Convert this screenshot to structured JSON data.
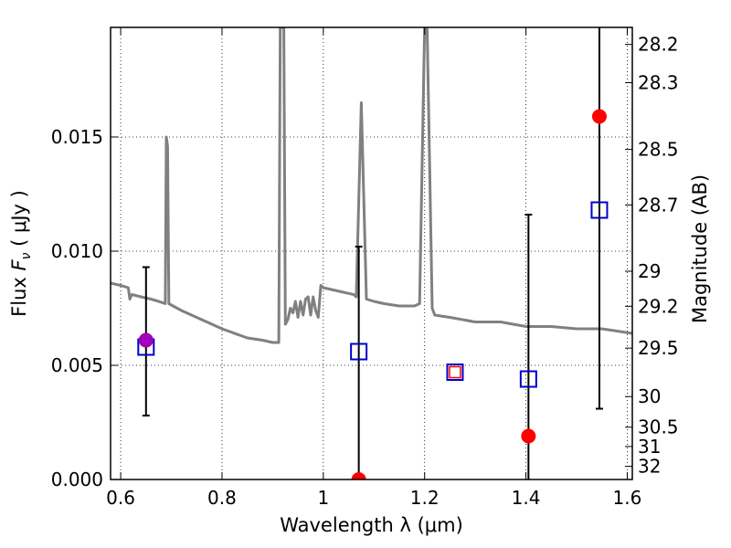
{
  "chart_data": {
    "type": "scatter",
    "xlabel": "Wavelength  λ (μm)",
    "ylabel": "Flux  F_ν  ( μJy )",
    "ylabel_parts": {
      "pre": "Flux  ",
      "sym": "F",
      "sub": "ν",
      "post": "  ( μJy )"
    },
    "y2label": "Magnitude (AB)",
    "xlim": [
      0.58,
      1.61
    ],
    "ylim": [
      0.0,
      0.0198
    ],
    "grid": true,
    "x_ticks": [
      {
        "v": 0.6,
        "label": "0.6"
      },
      {
        "v": 0.8,
        "label": "0.8"
      },
      {
        "v": 1.0,
        "label": "1"
      },
      {
        "v": 1.2,
        "label": "1.2"
      },
      {
        "v": 1.4,
        "label": "1.4"
      },
      {
        "v": 1.6,
        "label": "1.6"
      }
    ],
    "y_ticks": [
      {
        "v": 0.0,
        "label": "0.000"
      },
      {
        "v": 0.005,
        "label": "0.005"
      },
      {
        "v": 0.01,
        "label": "0.010"
      },
      {
        "v": 0.015,
        "label": "0.015"
      }
    ],
    "mag_ticks": [
      {
        "mag": 28.2,
        "label": "28.2"
      },
      {
        "mag": 28.3,
        "label": "28.3"
      },
      {
        "mag": 28.5,
        "label": "28.5"
      },
      {
        "mag": 28.7,
        "label": "28.7"
      },
      {
        "mag": 29,
        "label": "29"
      },
      {
        "mag": 29.2,
        "label": "29.2"
      },
      {
        "mag": 29.5,
        "label": "29.5"
      },
      {
        "mag": 30,
        "label": "30"
      },
      {
        "mag": 30.5,
        "label": "30.5"
      },
      {
        "mag": 31,
        "label": "31"
      },
      {
        "mag": 32,
        "label": "32"
      }
    ],
    "model_spectrum": {
      "color": "#808080",
      "points": [
        [
          0.58,
          0.0086
        ],
        [
          0.6,
          0.0085
        ],
        [
          0.615,
          0.0084
        ],
        [
          0.618,
          0.0079
        ],
        [
          0.622,
          0.0081
        ],
        [
          0.64,
          0.008
        ],
        [
          0.66,
          0.0079
        ],
        [
          0.675,
          0.0078
        ],
        [
          0.688,
          0.0077
        ],
        [
          0.69,
          0.015
        ],
        [
          0.6925,
          0.0146
        ],
        [
          0.695,
          0.0077
        ],
        [
          0.72,
          0.0074
        ],
        [
          0.75,
          0.0071
        ],
        [
          0.8,
          0.0066
        ],
        [
          0.85,
          0.0062
        ],
        [
          0.88,
          0.0061
        ],
        [
          0.9,
          0.006
        ],
        [
          0.912,
          0.006
        ],
        [
          0.915,
          0.0198
        ],
        [
          0.922,
          0.0198
        ],
        [
          0.925,
          0.0068
        ],
        [
          0.93,
          0.007
        ],
        [
          0.935,
          0.0075
        ],
        [
          0.94,
          0.0073
        ],
        [
          0.945,
          0.0078
        ],
        [
          0.95,
          0.0071
        ],
        [
          0.955,
          0.0078
        ],
        [
          0.96,
          0.0072
        ],
        [
          0.965,
          0.0079
        ],
        [
          0.97,
          0.008
        ],
        [
          0.975,
          0.0072
        ],
        [
          0.98,
          0.008
        ],
        [
          0.985,
          0.0074
        ],
        [
          0.99,
          0.0071
        ],
        [
          0.995,
          0.0085
        ],
        [
          1.0,
          0.0084
        ],
        [
          1.02,
          0.0083
        ],
        [
          1.04,
          0.0082
        ],
        [
          1.06,
          0.0081
        ],
        [
          1.065,
          0.008
        ],
        [
          1.075,
          0.0165
        ],
        [
          1.085,
          0.0079
        ],
        [
          1.1,
          0.0078
        ],
        [
          1.12,
          0.0077
        ],
        [
          1.15,
          0.0076
        ],
        [
          1.18,
          0.0076
        ],
        [
          1.19,
          0.0077
        ],
        [
          1.2,
          0.0198
        ],
        [
          1.202,
          0.0198
        ],
        [
          1.205,
          0.0197
        ],
        [
          1.215,
          0.0075
        ],
        [
          1.22,
          0.0072
        ],
        [
          1.25,
          0.0071
        ],
        [
          1.3,
          0.0069
        ],
        [
          1.35,
          0.0069
        ],
        [
          1.4,
          0.0067
        ],
        [
          1.45,
          0.0067
        ],
        [
          1.5,
          0.0066
        ],
        [
          1.55,
          0.0066
        ],
        [
          1.58,
          0.0065
        ],
        [
          1.61,
          0.0064
        ]
      ]
    },
    "series": [
      {
        "name": "",
        "marker": "square-open",
        "color": "#0000cc",
        "points": [
          {
            "x": 0.65,
            "y": 0.0058
          },
          {
            "x": 1.07,
            "y": 0.0056
          },
          {
            "x": 1.26,
            "y": 0.0047
          },
          {
            "x": 1.405,
            "y": 0.0044
          },
          {
            "x": 1.545,
            "y": 0.0118
          }
        ]
      },
      {
        "name": "",
        "marker": "circle",
        "color": "#ff0000",
        "points": [
          {
            "x": 0.65,
            "y": 0.0061,
            "yerr_low": 0.0028,
            "yerr_high": 0.0093
          },
          {
            "x": 1.07,
            "y": 0.0,
            "yerr_low": 0.0,
            "yerr_high": 0.0102
          },
          {
            "x": 1.26,
            "y": 0.0047
          },
          {
            "x": 1.405,
            "y": 0.0019,
            "yerr_low": 0.0,
            "yerr_high": 0.0116
          },
          {
            "x": 1.545,
            "y": 0.0159,
            "yerr_low": 0.0031,
            "yerr_high": 0.0198
          }
        ]
      }
    ]
  }
}
